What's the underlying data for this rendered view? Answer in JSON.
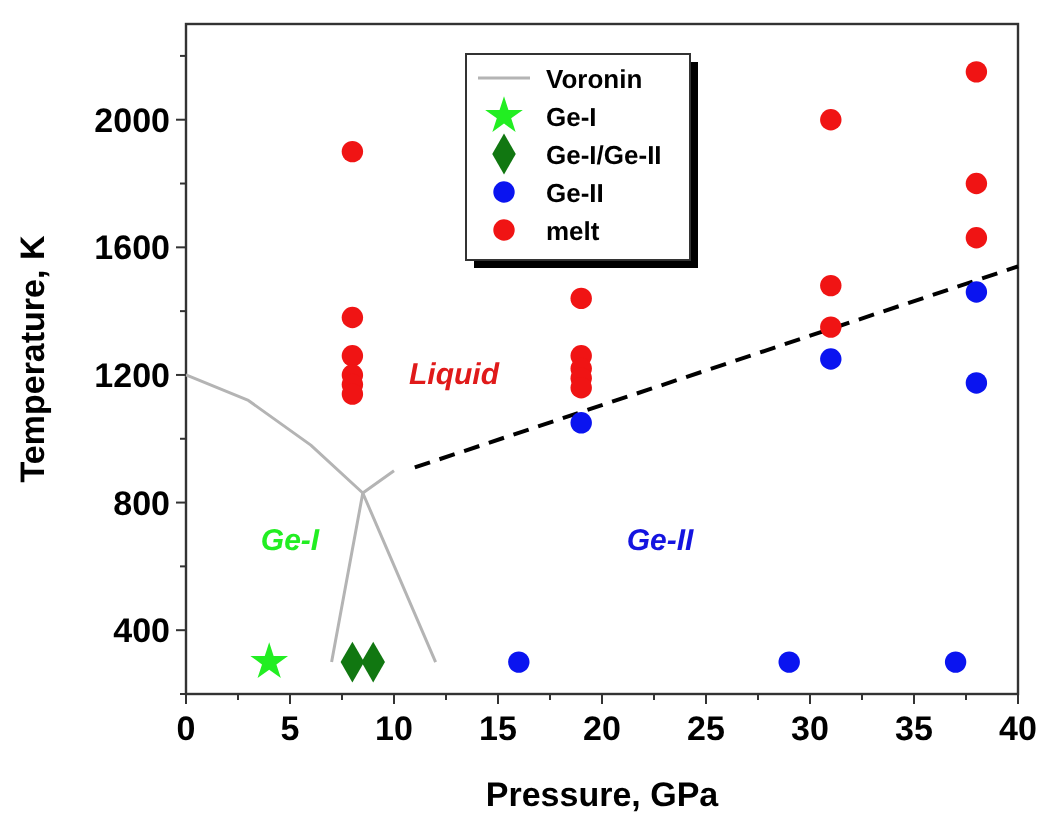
{
  "chart_data": {
    "type": "scatter",
    "xlabel": "Pressure, GPa",
    "ylabel": "Temperature, K",
    "xlim": [
      0,
      40
    ],
    "ylim": [
      200,
      2300
    ],
    "xticks": [
      0,
      {
        "value": 2.5,
        "label": null
      },
      5,
      {
        "value": 7.5,
        "label": null
      },
      10,
      {
        "value": 12.5,
        "label": null
      },
      15,
      {
        "value": 17.5,
        "label": null
      },
      20,
      {
        "value": 22.5,
        "label": null
      },
      25,
      {
        "value": 27.5,
        "label": null
      },
      30,
      {
        "value": 32.5,
        "label": null
      },
      35,
      {
        "value": 37.5,
        "label": null
      },
      40
    ],
    "yticks": [
      {
        "value": 200,
        "label": null
      },
      400,
      {
        "value": 600,
        "label": null
      },
      800,
      {
        "value": 1000,
        "label": null
      },
      1200,
      {
        "value": 1400,
        "label": null
      },
      1600,
      {
        "value": 1800,
        "label": null
      },
      2000,
      {
        "value": 2200,
        "label": null
      }
    ],
    "legend": "top",
    "grid": false,
    "series": [
      {
        "name": "Voronin",
        "type": "line",
        "color": "#b4b4b4",
        "marker": "none",
        "line_style": "solid",
        "x": [
          0,
          3,
          6,
          8.5,
          10
        ],
        "values": [
          1200,
          1120,
          980,
          830,
          900
        ]
      },
      {
        "type": "line",
        "color": "#b4b4b4",
        "marker": "none",
        "line_style": "solid",
        "x": [
          7,
          8.5,
          12
        ],
        "values": [
          300,
          830,
          300
        ]
      },
      {
        "type": "line",
        "color": "#000000",
        "marker": "none",
        "line_style": "dashed",
        "x": [
          11,
          40
        ],
        "values": [
          910,
          1540
        ]
      },
      {
        "name": "Ge-I",
        "color": "#22ee22",
        "marker": "star",
        "x": [
          4
        ],
        "values": [
          300
        ]
      },
      {
        "name": "Ge-I/Ge-II",
        "color": "#117711",
        "marker": "diamond",
        "x": [
          8,
          9
        ],
        "values": [
          300,
          300
        ]
      },
      {
        "name": "Ge-II",
        "color": "#0a14f0",
        "marker": "circle",
        "x": [
          16,
          29,
          37,
          19,
          31,
          38,
          38
        ],
        "values": [
          300,
          300,
          300,
          1050,
          1250,
          1460,
          1175
        ]
      },
      {
        "name": "melt",
        "color": "#f01414",
        "marker": "circle",
        "x": [
          8,
          8,
          8,
          8,
          8,
          8,
          19,
          19,
          19,
          19,
          19,
          31,
          31,
          31,
          38,
          38,
          38
        ],
        "values": [
          1900,
          1380,
          1260,
          1200,
          1170,
          1140,
          1440,
          1260,
          1220,
          1190,
          1160,
          2000,
          1480,
          1350,
          2150,
          1800,
          1630
        ]
      }
    ],
    "annotations": [
      "Liquid",
      "Ge-I",
      "Ge-II"
    ]
  }
}
